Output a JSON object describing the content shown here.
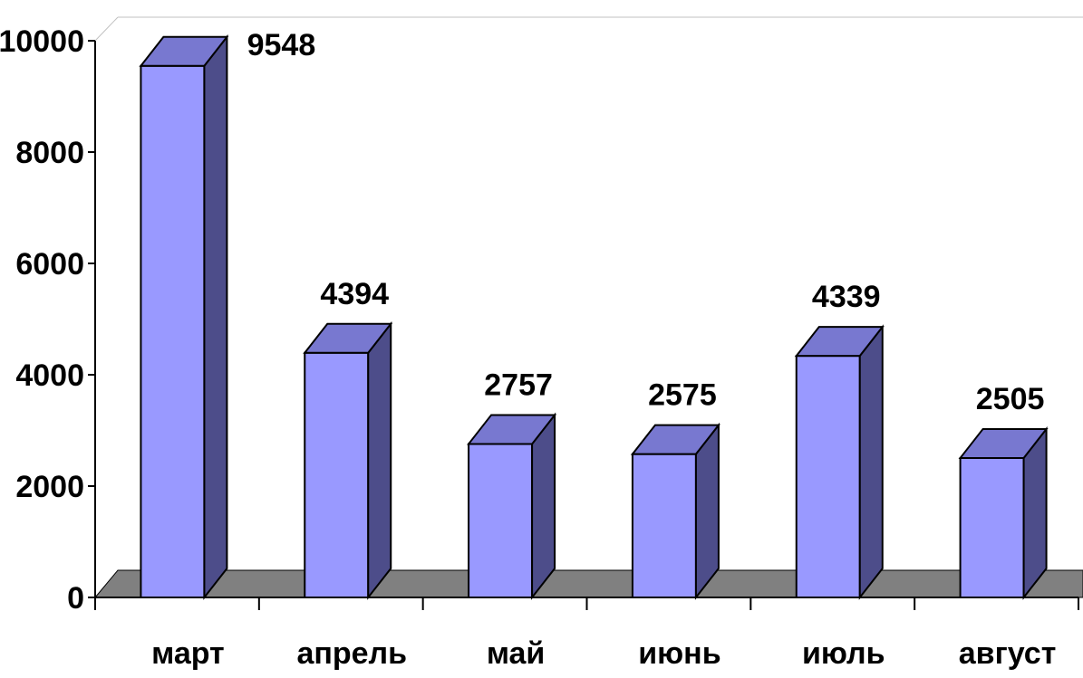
{
  "chart_data": {
    "type": "bar",
    "style": "3d-column",
    "categories": [
      "март",
      "апрель",
      "май",
      "июнь",
      "июль",
      "август"
    ],
    "values": [
      9548,
      4394,
      2757,
      2575,
      4339,
      2505
    ],
    "data_labels": [
      "9548",
      "4394",
      "2757",
      "2575",
      "4339",
      "2505"
    ],
    "ylim": [
      0,
      10000
    ],
    "yticks": [
      0,
      2000,
      4000,
      6000,
      8000,
      10000
    ],
    "ytick_labels": [
      "0",
      "2000",
      "4000",
      "6000",
      "8000",
      "10000"
    ],
    "title": "",
    "xlabel": "",
    "ylabel": "",
    "legend": "none",
    "grid": false,
    "colors": {
      "bar_front": "#9999ff",
      "bar_top": "#7878d0",
      "bar_side": "#4d4d8a",
      "floor": "#808080",
      "axis": "#000000",
      "wall_edge": "#c0c0c0"
    }
  }
}
